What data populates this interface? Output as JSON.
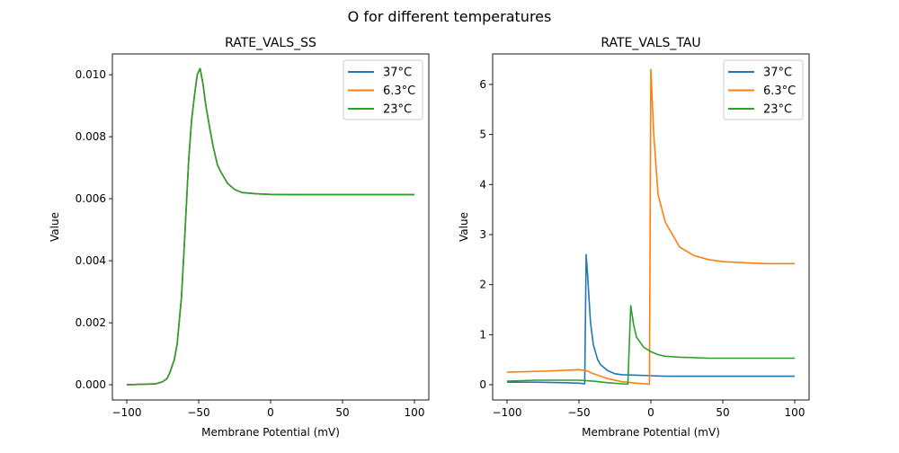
{
  "suptitle": "O for different temperatures",
  "chart_data": [
    {
      "type": "line",
      "title": "RATE_VALS_SS",
      "xlabel": "Membrane Potential (mV)",
      "ylabel": "Value",
      "xlim": [
        -110,
        110
      ],
      "ylim": [
        -0.00049,
        0.01067
      ],
      "xticks": [
        -100,
        -50,
        0,
        50,
        100
      ],
      "xtick_labels": [
        "−100",
        "−50",
        "0",
        "50",
        "100"
      ],
      "yticks": [
        0,
        0.002,
        0.004,
        0.006,
        0.008,
        0.01
      ],
      "ytick_labels": [
        "0.000",
        "0.002",
        "0.004",
        "0.006",
        "0.008",
        "0.010"
      ],
      "grid": false,
      "legend": "top-right",
      "series": [
        {
          "name": "37°C",
          "color": "#1f77b4",
          "x": [
            -100,
            -80,
            -75,
            -72,
            -70,
            -67,
            -65,
            -62,
            -60,
            -57,
            -55,
            -53,
            -51,
            -49,
            -47,
            -45,
            -42,
            -40,
            -37,
            -35,
            -30,
            -25,
            -20,
            -10,
            0,
            20,
            50,
            100
          ],
          "y": [
            0,
            3e-05,
            0.0001,
            0.0002,
            0.0004,
            0.0008,
            0.0013,
            0.0028,
            0.0045,
            0.0072,
            0.0085,
            0.0093,
            0.01,
            0.0102,
            0.0097,
            0.009,
            0.0082,
            0.0077,
            0.0071,
            0.0069,
            0.0065,
            0.0063,
            0.0062,
            0.00616,
            0.00614,
            0.00613,
            0.00613,
            0.00613
          ]
        },
        {
          "name": "6.3°C",
          "color": "#ff7f0e",
          "x": [
            -100,
            -80,
            -75,
            -72,
            -70,
            -67,
            -65,
            -62,
            -60,
            -57,
            -55,
            -53,
            -51,
            -49,
            -47,
            -45,
            -42,
            -40,
            -37,
            -35,
            -30,
            -25,
            -20,
            -10,
            0,
            20,
            50,
            100
          ],
          "y": [
            0,
            3e-05,
            0.0001,
            0.0002,
            0.0004,
            0.0008,
            0.0013,
            0.0028,
            0.0045,
            0.0072,
            0.0085,
            0.0093,
            0.01,
            0.0102,
            0.0097,
            0.009,
            0.0082,
            0.0077,
            0.0071,
            0.0069,
            0.0065,
            0.0063,
            0.0062,
            0.00616,
            0.00614,
            0.00613,
            0.00613,
            0.00613
          ]
        },
        {
          "name": "23°C",
          "color": "#2ca02c",
          "x": [
            -100,
            -80,
            -75,
            -72,
            -70,
            -67,
            -65,
            -62,
            -60,
            -57,
            -55,
            -53,
            -51,
            -49,
            -47,
            -45,
            -42,
            -40,
            -37,
            -35,
            -30,
            -25,
            -20,
            -10,
            0,
            20,
            50,
            100
          ],
          "y": [
            0,
            3e-05,
            0.0001,
            0.0002,
            0.0004,
            0.0008,
            0.0013,
            0.0028,
            0.0045,
            0.0072,
            0.0085,
            0.0093,
            0.01,
            0.0102,
            0.0097,
            0.009,
            0.0082,
            0.0077,
            0.0071,
            0.0069,
            0.0065,
            0.0063,
            0.0062,
            0.00616,
            0.00614,
            0.00613,
            0.00613,
            0.00613
          ]
        }
      ]
    },
    {
      "type": "line",
      "title": "RATE_VALS_TAU",
      "xlabel": "Membrane Potential (mV)",
      "ylabel": "Value",
      "xlim": [
        -110,
        110
      ],
      "ylim": [
        -0.305,
        6.61
      ],
      "xticks": [
        -100,
        -50,
        0,
        50,
        100
      ],
      "xtick_labels": [
        "−100",
        "−50",
        "0",
        "50",
        "100"
      ],
      "yticks": [
        0,
        1,
        2,
        3,
        4,
        5,
        6
      ],
      "ytick_labels": [
        "0",
        "1",
        "2",
        "3",
        "4",
        "5",
        "6"
      ],
      "grid": false,
      "legend": "top-right",
      "series": [
        {
          "name": "37°C",
          "color": "#1f77b4",
          "x": [
            -100,
            -80,
            -60,
            -50,
            -46,
            -45,
            -44,
            -42,
            -40,
            -37,
            -35,
            -30,
            -25,
            -20,
            -10,
            0,
            10,
            50,
            100
          ],
          "y": [
            0.05,
            0.05,
            0.04,
            0.03,
            0.02,
            2.6,
            2.2,
            1.25,
            0.8,
            0.5,
            0.4,
            0.28,
            0.22,
            0.2,
            0.19,
            0.18,
            0.17,
            0.17,
            0.17
          ]
        },
        {
          "name": "6.3°C",
          "color": "#ff7f0e",
          "x": [
            -100,
            -75,
            -50,
            -45,
            -40,
            -30,
            -20,
            -10,
            -1,
            0,
            2,
            5,
            10,
            20,
            30,
            40,
            50,
            70,
            80,
            100
          ],
          "y": [
            0.25,
            0.27,
            0.3,
            0.28,
            0.22,
            0.12,
            0.06,
            0.03,
            0.01,
            6.3,
            5.0,
            3.8,
            3.25,
            2.75,
            2.58,
            2.5,
            2.46,
            2.43,
            2.42,
            2.42
          ]
        },
        {
          "name": "23°C",
          "color": "#2ca02c",
          "x": [
            -100,
            -80,
            -50,
            -40,
            -30,
            -16,
            -14,
            -12,
            -10,
            -5,
            0,
            5,
            10,
            20,
            40,
            100
          ],
          "y": [
            0.07,
            0.09,
            0.09,
            0.07,
            0.04,
            0.01,
            1.58,
            1.2,
            0.95,
            0.75,
            0.66,
            0.6,
            0.57,
            0.55,
            0.53,
            0.53
          ]
        }
      ]
    }
  ]
}
